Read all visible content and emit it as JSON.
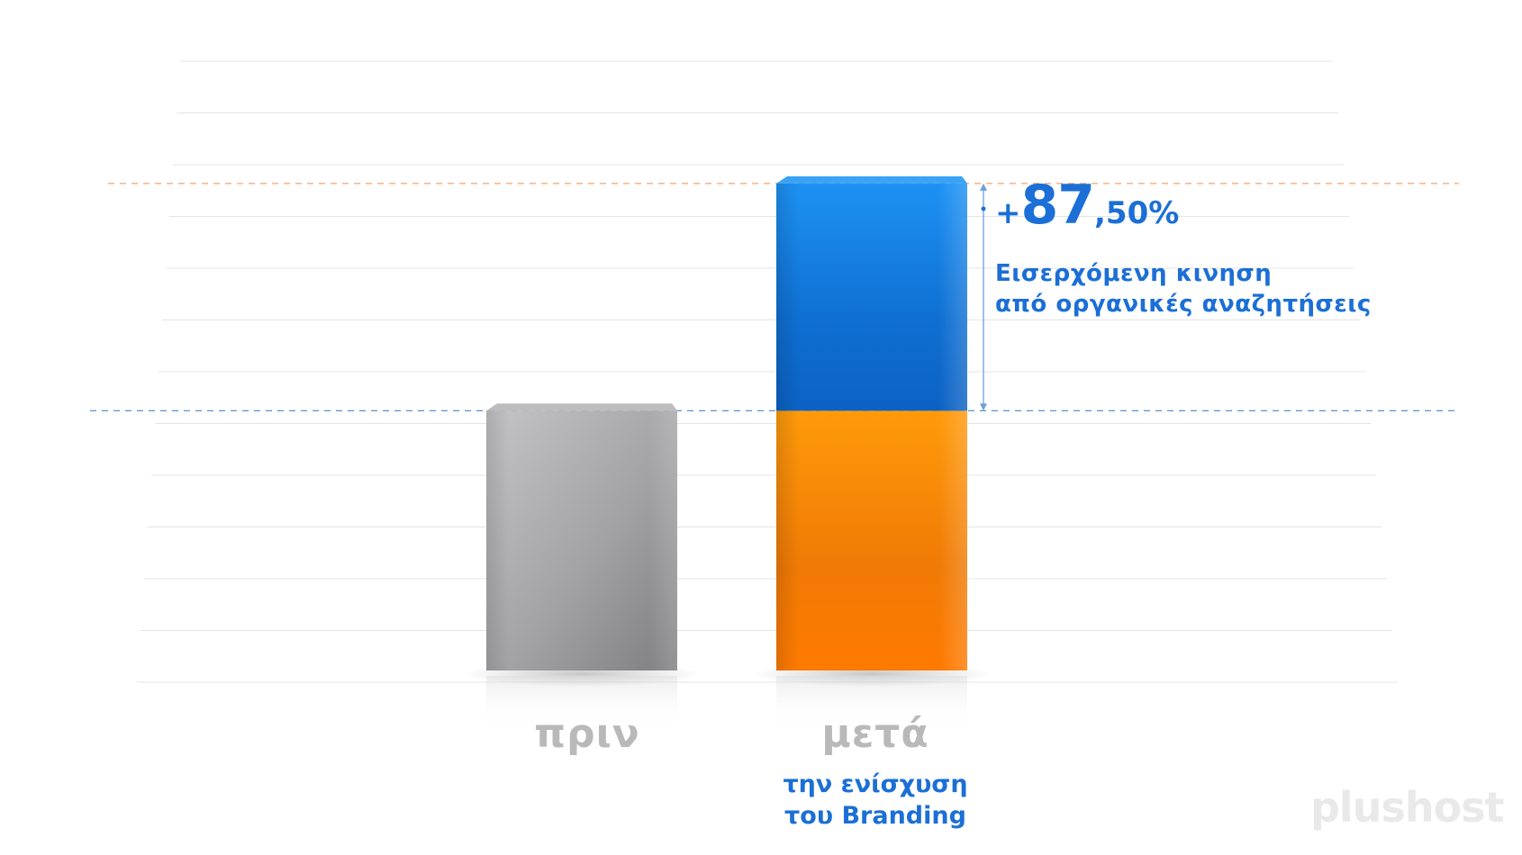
{
  "chart_data": {
    "type": "bar",
    "categories": [
      "πριν",
      "μετά"
    ],
    "category_sublabels": [
      [],
      [
        "την ενίσχυση",
        "του Branding"
      ]
    ],
    "values": [
      100,
      187.5
    ],
    "stack": [
      {
        "segment": "base",
        "values": [
          100,
          100
        ],
        "colors": [
          "#a9a8ab",
          "#ff8a00"
        ]
      },
      {
        "segment": "increase",
        "values": [
          0,
          87.5
        ],
        "color": "#1c8ef0"
      }
    ],
    "annotation": {
      "sign": "+",
      "integer": "87",
      "decimal": ",50%",
      "lines": [
        "Εισερχόμενη κινηση",
        "από οργανικές αναζητήσεις"
      ]
    },
    "ylim": [
      0,
      200
    ],
    "grid": true,
    "title": "",
    "xlabel": "",
    "ylabel": ""
  },
  "colors": {
    "accent_blue": "#1b6fd6",
    "category_gray": "#b9b9b9",
    "dashed_orange": "#f5a36b",
    "dashed_blue": "#5d8fcf"
  },
  "logo": {
    "text": "plushost"
  }
}
